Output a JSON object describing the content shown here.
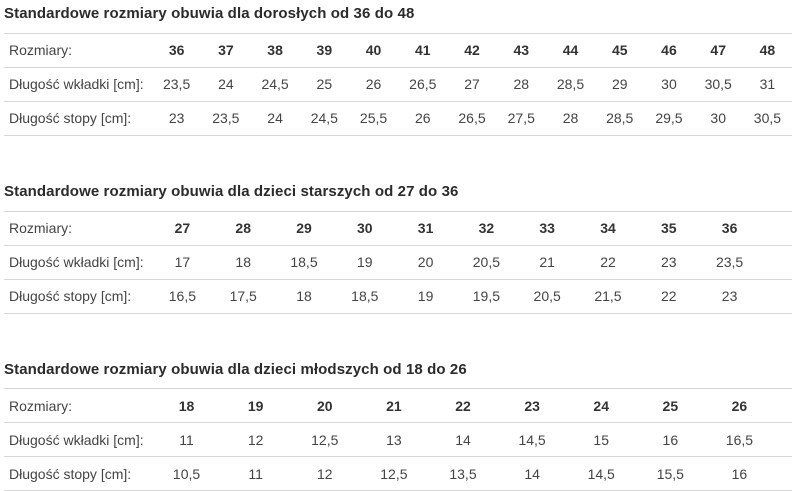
{
  "page": {
    "background": "#ffffff",
    "divider_color": "#d8d8d8",
    "title_color": "#2b2b2b",
    "text_color": "#444444"
  },
  "tables": [
    {
      "title": "Standardowe rozmiary obuwia dla dorosłych od 36 do 48",
      "rows": [
        {
          "label": "Rozmiary:",
          "header": true,
          "values": [
            "36",
            "37",
            "38",
            "39",
            "40",
            "41",
            "42",
            "43",
            "44",
            "45",
            "46",
            "47",
            "48"
          ]
        },
        {
          "label": "Długość wkładki [cm]:",
          "header": false,
          "values": [
            "23,5",
            "24",
            "24,5",
            "25",
            "26",
            "26,5",
            "27",
            "28",
            "28,5",
            "29",
            "30",
            "30,5",
            "31"
          ]
        },
        {
          "label": "Długość stopy [cm]:",
          "header": false,
          "values": [
            "23",
            "23,5",
            "24",
            "24,5",
            "25,5",
            "26",
            "26,5",
            "27,5",
            "28",
            "28,5",
            "29,5",
            "30",
            "30,5"
          ]
        }
      ]
    },
    {
      "title": "Standardowe rozmiary obuwia dla dzieci starszych od 27 do 36",
      "rows": [
        {
          "label": "Rozmiary:",
          "header": true,
          "values": [
            "27",
            "28",
            "29",
            "30",
            "31",
            "32",
            "33",
            "34",
            "35",
            "36"
          ]
        },
        {
          "label": "Długość wkładki [cm]:",
          "header": false,
          "values": [
            "17",
            "18",
            "18,5",
            "19",
            "20",
            "20,5",
            "21",
            "22",
            "23",
            "23,5"
          ]
        },
        {
          "label": "Długość stopy [cm]:",
          "header": false,
          "values": [
            "16,5",
            "17,5",
            "18",
            "18,5",
            "19",
            "19,5",
            "20,5",
            "21,5",
            "22",
            "23"
          ]
        }
      ]
    },
    {
      "title": "Standardowe rozmiary obuwia dla dzieci młodszych od 18 do 26",
      "rows": [
        {
          "label": "Rozmiary:",
          "header": true,
          "values": [
            "18",
            "19",
            "20",
            "21",
            "22",
            "23",
            "24",
            "25",
            "26"
          ]
        },
        {
          "label": "Długość wkładki [cm]:",
          "header": false,
          "values": [
            "11",
            "12",
            "12,5",
            "13",
            "14",
            "14,5",
            "15",
            "16",
            "16,5"
          ]
        },
        {
          "label": "Długość stopy [cm]:",
          "header": false,
          "values": [
            "10,5",
            "11",
            "12",
            "12,5",
            "13,5",
            "14",
            "14,5",
            "15,5",
            "16"
          ]
        }
      ]
    }
  ]
}
